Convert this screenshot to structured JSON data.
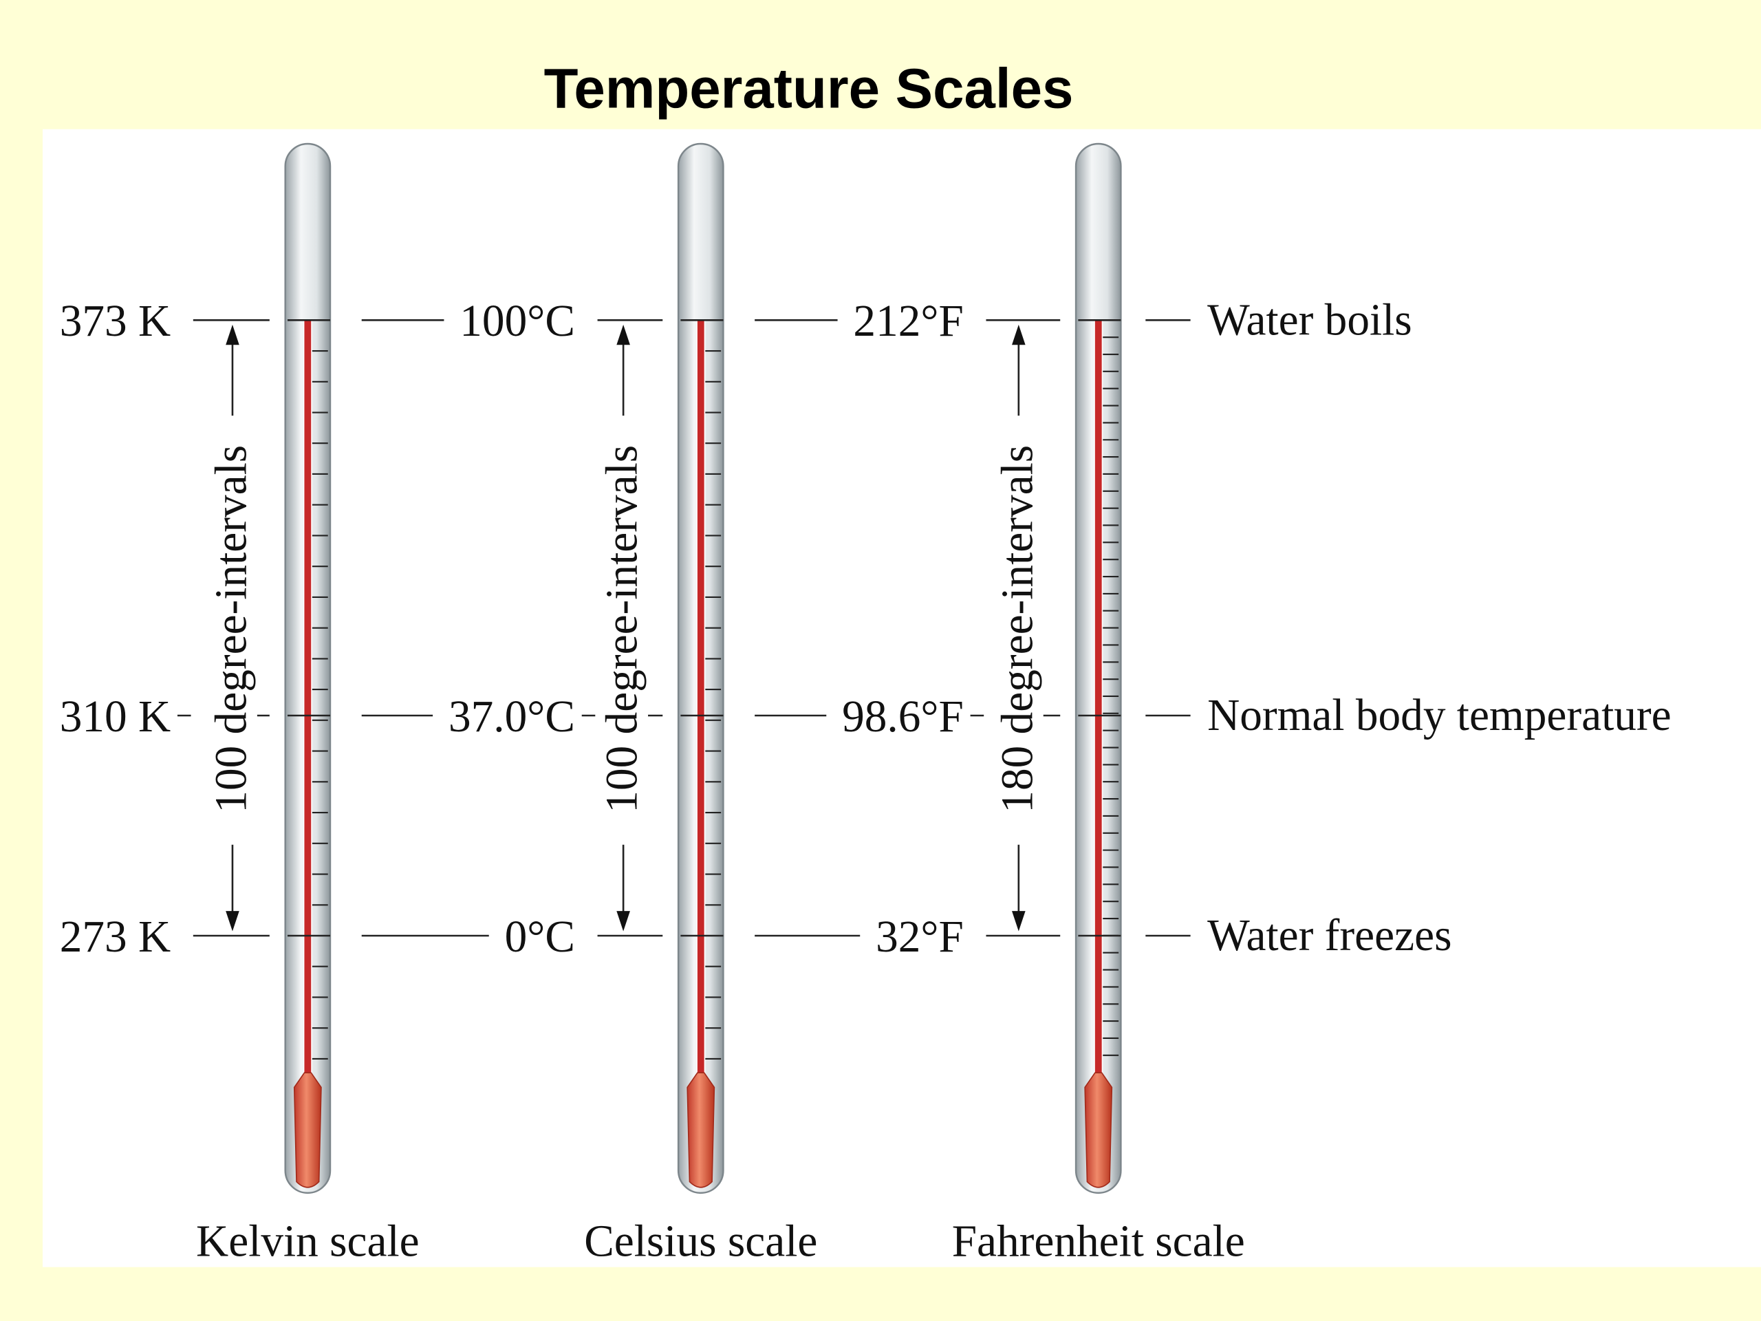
{
  "title": "Temperature Scales",
  "scales": [
    {
      "name": "Kelvin scale",
      "marks": [
        "373 K",
        "310 K",
        "273 K"
      ],
      "interval": "100 degree-intervals"
    },
    {
      "name": "Celsius scale",
      "marks": [
        "100°C",
        "37.0°C",
        "0°C"
      ],
      "interval": "100 degree-intervals"
    },
    {
      "name": "Fahrenheit scale",
      "marks": [
        "212°F",
        "98.6°F",
        "32°F"
      ],
      "interval": "180 degree-intervals"
    }
  ],
  "references": [
    "Water boils",
    "Normal body temperature",
    "Water freezes"
  ]
}
